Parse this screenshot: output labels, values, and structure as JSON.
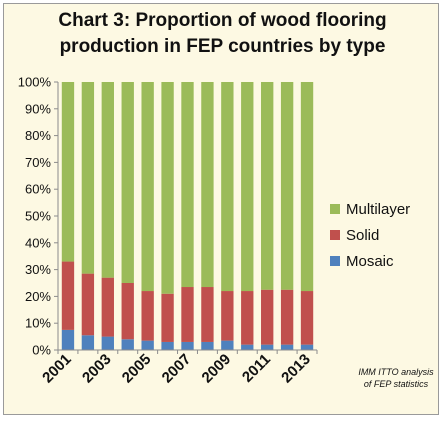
{
  "chart_data": {
    "type": "bar",
    "stacked": true,
    "title_lines": [
      "Chart 3: Proportion of wood flooring",
      "production in FEP countries by type"
    ],
    "categories": [
      "2001",
      "2002",
      "2003",
      "2004",
      "2005",
      "2006",
      "2007",
      "2008",
      "2009",
      "2010",
      "2011",
      "2012",
      "2013"
    ],
    "x_tick_labels": [
      "2001",
      "",
      "2003",
      "",
      "2005",
      "",
      "2007",
      "",
      "2009",
      "",
      "2011",
      "",
      "2013"
    ],
    "y_tick_labels": [
      "0%",
      "10%",
      "20%",
      "30%",
      "40%",
      "50%",
      "60%",
      "70%",
      "80%",
      "90%",
      "100%"
    ],
    "ylim": [
      0,
      100
    ],
    "grid": false,
    "legend_position": "right",
    "series": [
      {
        "name": "Mosaic",
        "color": "#4f81bd",
        "values": [
          7.5,
          5.5,
          5,
          4,
          3.5,
          3,
          3,
          3,
          3.5,
          2,
          2,
          2,
          2
        ]
      },
      {
        "name": "Solid",
        "color": "#c0504d",
        "values": [
          25.5,
          23,
          22,
          21,
          18.5,
          18,
          20.5,
          20.5,
          18.5,
          20,
          20.5,
          20.5,
          20
        ]
      },
      {
        "name": "Multilayer",
        "color": "#9bbb59",
        "values": [
          67,
          71.5,
          73,
          75,
          78,
          79,
          76.5,
          76.5,
          78,
          78,
          77.5,
          77.5,
          78
        ]
      }
    ],
    "legend_order": [
      "Multilayer",
      "Solid",
      "Mosaic"
    ],
    "source_note_lines": [
      "IMM ITTO analysis",
      "of FEP statistics"
    ]
  }
}
